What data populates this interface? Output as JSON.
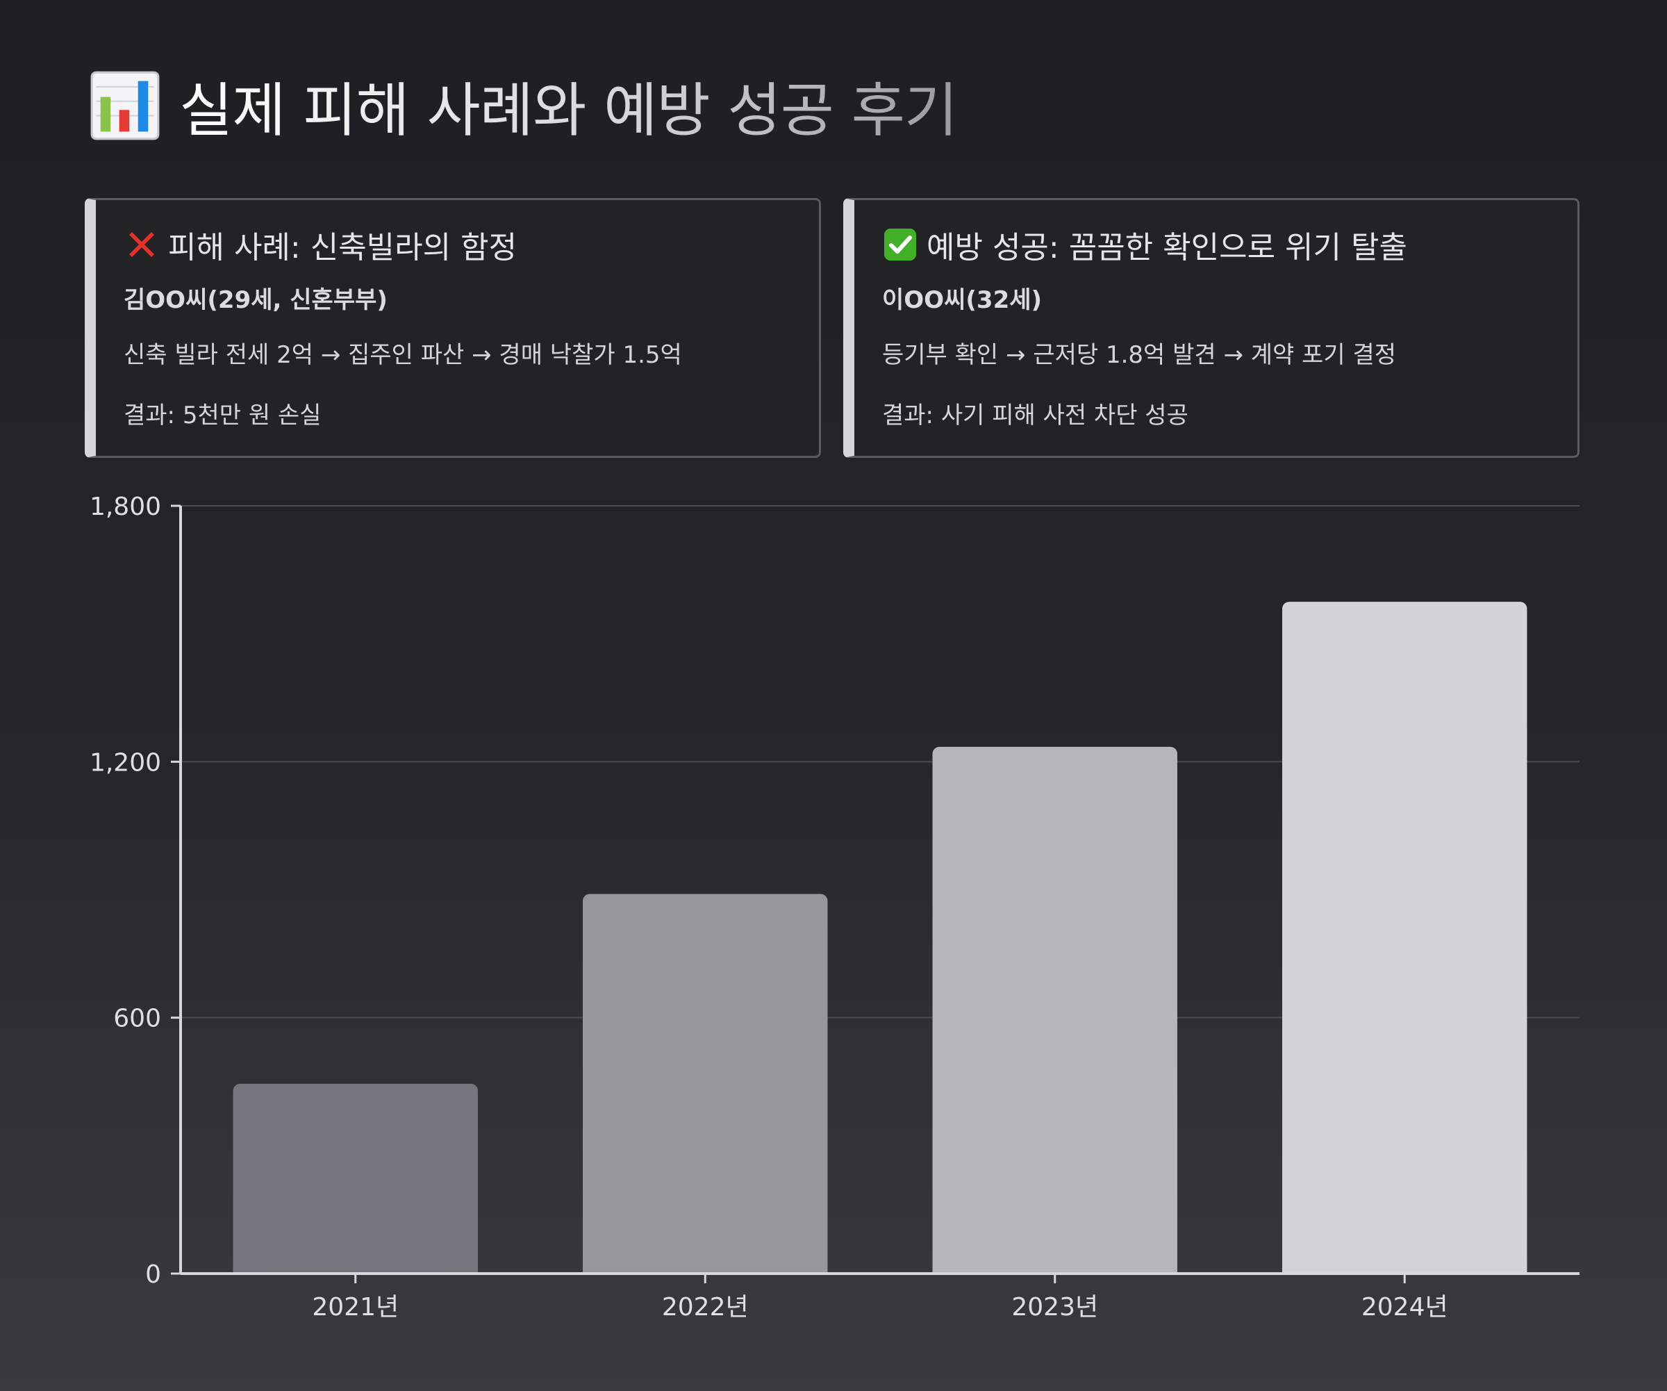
{
  "header": {
    "title": "실제 피해 사례와 예방 성공 후기",
    "icon": "bar-chart-emoji-icon"
  },
  "cards": [
    {
      "icon": "red-cross-mark-icon",
      "heading": "피해 사례: 신축빌라의 함정",
      "person": "김OO씨(29세, 신혼부부)",
      "detail": "신축 빌라 전세 2억 → 집주인 파산 → 경매 낙찰가 1.5억",
      "result": "결과: 5천만 원 손실"
    },
    {
      "icon": "green-check-mark-icon",
      "heading": "예방 성공: 꼼꼼한 확인으로 위기 탈출",
      "person": "이OO씨(32세)",
      "detail": "등기부 확인 → 근저당 1.8억 발견 → 계약 포기 결정",
      "result": "결과: 사기 피해 사전 차단 성공"
    }
  ],
  "colors": {
    "bars": [
      "#75757d",
      "#96969b",
      "#b5b5ba",
      "#d4d4d7"
    ],
    "grid": "#4a4a50",
    "axis": "#d8d8dc",
    "card_accent": "#d6d6da"
  },
  "chart_data": {
    "type": "bar",
    "categories": [
      "2021년",
      "2022년",
      "2023년",
      "2024년"
    ],
    "values": [
      445,
      890,
      1235,
      1575
    ],
    "title": "",
    "xlabel": "",
    "ylabel": "",
    "ylim": [
      0,
      1800
    ],
    "yticks": [
      0,
      600,
      1200,
      1800
    ],
    "ytick_labels": [
      "0",
      "600",
      "1,200",
      "1,800"
    ],
    "grid": true,
    "legend": "none"
  }
}
